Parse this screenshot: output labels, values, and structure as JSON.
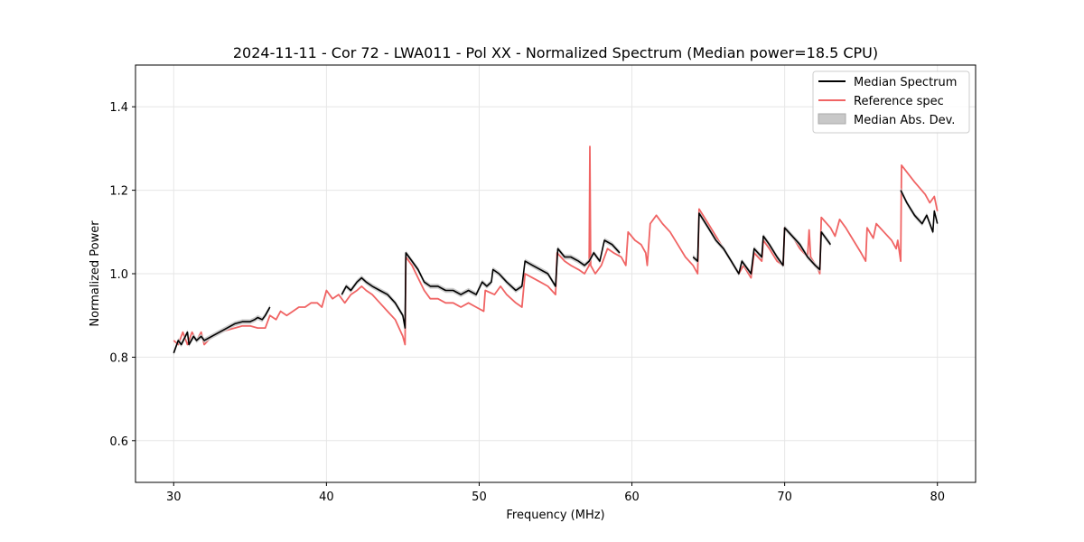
{
  "chart_data": {
    "type": "line",
    "title": "2024-11-11 - Cor 72 - LWA011 - Pol XX - Normalized Spectrum (Median power=18.5 CPU)",
    "xlabel": "Frequency (MHz)",
    "ylabel": "Normalized Power",
    "xlim": [
      27.5,
      82.5
    ],
    "ylim": [
      0.5,
      1.5
    ],
    "x_ticks": [
      30,
      40,
      50,
      60,
      70,
      80
    ],
    "y_ticks": [
      0.6,
      0.8,
      1.0,
      1.2,
      1.4
    ],
    "x_tick_labels": [
      "30",
      "40",
      "50",
      "60",
      "70",
      "80"
    ],
    "y_tick_labels": [
      "0.6",
      "0.8",
      "1.0",
      "1.2",
      "1.4"
    ],
    "grid": true,
    "legend_position": "top-right",
    "series": [
      {
        "name": "Median Spectrum",
        "color": "#000000",
        "segments": [
          [
            [
              30.0,
              0.81
            ],
            [
              30.3,
              0.84
            ],
            [
              30.5,
              0.83
            ],
            [
              30.9,
              0.86
            ],
            [
              31.0,
              0.83
            ],
            [
              31.3,
              0.85
            ],
            [
              31.5,
              0.84
            ],
            [
              31.8,
              0.85
            ],
            [
              32.0,
              0.84
            ],
            [
              32.5,
              0.85
            ],
            [
              33.0,
              0.86
            ],
            [
              33.5,
              0.87
            ],
            [
              34.0,
              0.88
            ],
            [
              34.5,
              0.885
            ],
            [
              35.0,
              0.885
            ],
            [
              35.3,
              0.89
            ],
            [
              35.5,
              0.895
            ],
            [
              35.8,
              0.89
            ],
            [
              36.0,
              0.9
            ],
            [
              36.3,
              0.92
            ]
          ],
          [
            [
              41.0,
              0.95
            ],
            [
              41.3,
              0.97
            ],
            [
              41.6,
              0.96
            ],
            [
              42.0,
              0.98
            ],
            [
              42.3,
              0.99
            ],
            [
              42.6,
              0.98
            ],
            [
              43.0,
              0.97
            ],
            [
              43.5,
              0.96
            ],
            [
              44.0,
              0.95
            ],
            [
              44.5,
              0.93
            ],
            [
              45.0,
              0.9
            ],
            [
              45.15,
              0.87
            ],
            [
              45.2,
              1.05
            ],
            [
              45.6,
              1.03
            ],
            [
              46.0,
              1.01
            ],
            [
              46.4,
              0.98
            ],
            [
              46.8,
              0.97
            ],
            [
              47.3,
              0.97
            ],
            [
              47.8,
              0.96
            ],
            [
              48.3,
              0.96
            ],
            [
              48.8,
              0.95
            ],
            [
              49.3,
              0.96
            ],
            [
              49.8,
              0.95
            ],
            [
              50.2,
              0.98
            ],
            [
              50.5,
              0.97
            ],
            [
              50.8,
              0.98
            ],
            [
              50.9,
              1.01
            ],
            [
              51.3,
              1.0
            ],
            [
              51.8,
              0.98
            ],
            [
              52.4,
              0.96
            ],
            [
              52.8,
              0.97
            ],
            [
              53.0,
              1.03
            ],
            [
              53.5,
              1.02
            ],
            [
              54.0,
              1.01
            ],
            [
              54.5,
              1.0
            ],
            [
              55.0,
              0.97
            ],
            [
              55.15,
              1.06
            ],
            [
              55.6,
              1.04
            ],
            [
              56.0,
              1.04
            ],
            [
              56.5,
              1.03
            ],
            [
              56.9,
              1.02
            ],
            [
              57.2,
              1.03
            ],
            [
              57.5,
              1.05
            ],
            [
              57.9,
              1.03
            ],
            [
              58.2,
              1.08
            ],
            [
              58.7,
              1.07
            ],
            [
              59.2,
              1.05
            ]
          ],
          [
            [
              64.0,
              1.04
            ],
            [
              64.3,
              1.03
            ],
            [
              64.4,
              1.145
            ],
            [
              65.0,
              1.11
            ],
            [
              65.5,
              1.08
            ],
            [
              66.0,
              1.06
            ],
            [
              66.5,
              1.03
            ],
            [
              67.0,
              1.0
            ],
            [
              67.2,
              1.03
            ],
            [
              67.8,
              1.0
            ],
            [
              68.0,
              1.06
            ],
            [
              68.5,
              1.04
            ],
            [
              68.6,
              1.09
            ],
            [
              69.0,
              1.07
            ],
            [
              69.5,
              1.04
            ],
            [
              69.9,
              1.02
            ],
            [
              70.0,
              1.11
            ],
            [
              70.5,
              1.09
            ],
            [
              71.0,
              1.07
            ],
            [
              71.5,
              1.04
            ],
            [
              72.0,
              1.02
            ],
            [
              72.3,
              1.01
            ],
            [
              72.4,
              1.1
            ],
            [
              73.0,
              1.07
            ]
          ],
          [
            [
              77.6,
              1.2
            ],
            [
              78.0,
              1.17
            ],
            [
              78.5,
              1.14
            ],
            [
              79.0,
              1.12
            ],
            [
              79.3,
              1.14
            ],
            [
              79.7,
              1.1
            ],
            [
              79.8,
              1.15
            ],
            [
              80.0,
              1.12
            ]
          ]
        ]
      },
      {
        "name": "Reference spec",
        "color": "#f06464",
        "segments": [
          [
            [
              30.0,
              0.84
            ],
            [
              30.3,
              0.83
            ],
            [
              30.6,
              0.86
            ],
            [
              30.9,
              0.83
            ],
            [
              31.2,
              0.86
            ],
            [
              31.5,
              0.84
            ],
            [
              31.8,
              0.86
            ],
            [
              32.0,
              0.83
            ],
            [
              32.5,
              0.85
            ],
            [
              33.0,
              0.86
            ],
            [
              33.5,
              0.865
            ],
            [
              34.0,
              0.87
            ],
            [
              34.5,
              0.875
            ],
            [
              35.0,
              0.875
            ],
            [
              35.5,
              0.87
            ],
            [
              36.0,
              0.87
            ],
            [
              36.3,
              0.9
            ],
            [
              36.7,
              0.89
            ],
            [
              37.0,
              0.91
            ],
            [
              37.4,
              0.9
            ],
            [
              37.8,
              0.91
            ],
            [
              38.2,
              0.92
            ],
            [
              38.6,
              0.92
            ],
            [
              39.0,
              0.93
            ],
            [
              39.4,
              0.93
            ],
            [
              39.7,
              0.92
            ],
            [
              40.0,
              0.96
            ],
            [
              40.4,
              0.94
            ],
            [
              40.8,
              0.95
            ],
            [
              41.2,
              0.93
            ],
            [
              41.6,
              0.95
            ],
            [
              42.0,
              0.96
            ],
            [
              42.3,
              0.97
            ],
            [
              42.6,
              0.96
            ],
            [
              43.0,
              0.95
            ],
            [
              43.5,
              0.93
            ],
            [
              44.0,
              0.91
            ],
            [
              44.5,
              0.89
            ],
            [
              45.0,
              0.85
            ],
            [
              45.15,
              0.83
            ],
            [
              45.2,
              1.04
            ],
            [
              45.6,
              1.02
            ],
            [
              46.0,
              0.99
            ],
            [
              46.4,
              0.96
            ],
            [
              46.8,
              0.94
            ],
            [
              47.3,
              0.94
            ],
            [
              47.8,
              0.93
            ],
            [
              48.3,
              0.93
            ],
            [
              48.8,
              0.92
            ],
            [
              49.3,
              0.93
            ],
            [
              49.8,
              0.92
            ],
            [
              50.3,
              0.91
            ],
            [
              50.4,
              0.96
            ],
            [
              51.0,
              0.95
            ],
            [
              51.4,
              0.97
            ],
            [
              51.8,
              0.95
            ],
            [
              52.4,
              0.93
            ],
            [
              52.8,
              0.92
            ],
            [
              53.0,
              1.0
            ],
            [
              53.5,
              0.99
            ],
            [
              54.0,
              0.98
            ],
            [
              54.5,
              0.97
            ],
            [
              55.0,
              0.95
            ],
            [
              55.1,
              1.05
            ],
            [
              55.6,
              1.03
            ],
            [
              56.0,
              1.02
            ],
            [
              56.5,
              1.01
            ],
            [
              56.9,
              1.0
            ],
            [
              57.2,
              1.02
            ],
            [
              57.25,
              1.305
            ],
            [
              57.3,
              1.02
            ],
            [
              57.6,
              1.0
            ],
            [
              58.0,
              1.02
            ],
            [
              58.4,
              1.06
            ],
            [
              58.8,
              1.05
            ],
            [
              59.3,
              1.04
            ],
            [
              59.6,
              1.02
            ],
            [
              59.75,
              1.1
            ],
            [
              60.2,
              1.08
            ],
            [
              60.6,
              1.07
            ],
            [
              60.9,
              1.05
            ],
            [
              61.0,
              1.02
            ],
            [
              61.2,
              1.12
            ],
            [
              61.6,
              1.14
            ],
            [
              62.0,
              1.12
            ],
            [
              62.5,
              1.1
            ],
            [
              63.0,
              1.07
            ],
            [
              63.5,
              1.04
            ],
            [
              64.0,
              1.02
            ],
            [
              64.3,
              1.0
            ],
            [
              64.4,
              1.155
            ],
            [
              65.0,
              1.12
            ],
            [
              65.5,
              1.09
            ],
            [
              66.0,
              1.06
            ],
            [
              66.5,
              1.03
            ],
            [
              67.0,
              1.0
            ],
            [
              67.3,
              1.02
            ],
            [
              67.8,
              0.99
            ],
            [
              68.0,
              1.05
            ],
            [
              68.5,
              1.03
            ],
            [
              68.6,
              1.08
            ],
            [
              69.0,
              1.06
            ],
            [
              69.5,
              1.03
            ],
            [
              69.9,
              1.02
            ],
            [
              70.0,
              1.11
            ],
            [
              70.5,
              1.09
            ],
            [
              71.0,
              1.06
            ],
            [
              71.5,
              1.04
            ],
            [
              71.6,
              1.105
            ],
            [
              71.7,
              1.04
            ],
            [
              72.2,
              1.01
            ],
            [
              72.3,
              1.0
            ],
            [
              72.4,
              1.135
            ],
            [
              73.0,
              1.11
            ],
            [
              73.3,
              1.09
            ],
            [
              73.6,
              1.13
            ],
            [
              74.0,
              1.11
            ],
            [
              74.5,
              1.08
            ],
            [
              75.0,
              1.05
            ],
            [
              75.3,
              1.03
            ],
            [
              75.4,
              1.11
            ],
            [
              75.8,
              1.085
            ],
            [
              76.0,
              1.12
            ],
            [
              76.5,
              1.1
            ],
            [
              77.0,
              1.08
            ],
            [
              77.3,
              1.06
            ],
            [
              77.4,
              1.08
            ],
            [
              77.6,
              1.03
            ],
            [
              77.65,
              1.26
            ],
            [
              78.5,
              1.22
            ],
            [
              79.2,
              1.19
            ],
            [
              79.5,
              1.17
            ],
            [
              79.8,
              1.185
            ],
            [
              80.0,
              1.15
            ]
          ]
        ]
      },
      {
        "name": "Median Abs. Dev.",
        "color": "#c8c8c8",
        "type": "band",
        "description": "grey band around median spectrum"
      }
    ]
  }
}
